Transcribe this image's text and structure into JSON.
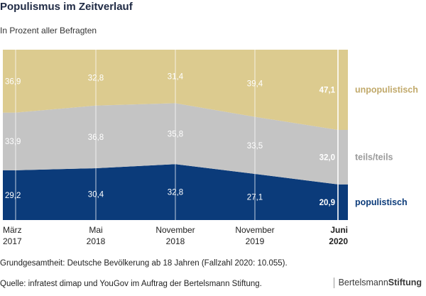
{
  "header": {
    "title": "Populismus im Zeitverlauf",
    "subtitle": "In Prozent aller Befragten"
  },
  "chart_data": {
    "type": "area",
    "stacked": true,
    "title": "Populismus im Zeitverlauf",
    "ylabel": "In Prozent aller Befragten",
    "ylim": [
      0,
      100
    ],
    "categories": [
      {
        "line1": "März",
        "line2": "2017",
        "bold": false
      },
      {
        "line1": "Mai",
        "line2": "2018",
        "bold": false
      },
      {
        "line1": "November",
        "line2": "2018",
        "bold": false
      },
      {
        "line1": "November",
        "line2": "2019",
        "bold": false
      },
      {
        "line1": "Juni",
        "line2": "2020",
        "bold": true
      }
    ],
    "series": [
      {
        "name": "populistisch",
        "color": "#0b3b7a",
        "labelColor": "#0b3b7a",
        "values": [
          29.2,
          30.4,
          32.8,
          27.1,
          20.9
        ],
        "labels": [
          "29,2",
          "30,4",
          "32,8",
          "27,1",
          "20,9"
        ]
      },
      {
        "name": "teils/teils",
        "color": "#c4c4c4",
        "labelColor": "#9a9a9a",
        "values": [
          33.9,
          36.8,
          35.8,
          33.5,
          32.0
        ],
        "labels": [
          "33,9",
          "36,8",
          "35,8",
          "33,5",
          "32,0"
        ]
      },
      {
        "name": "unpopulistisch",
        "color": "#dccb8f",
        "labelColor": "#c1a96a",
        "values": [
          36.9,
          32.8,
          31.4,
          39.4,
          47.1
        ],
        "labels": [
          "36,9",
          "32,8",
          "31,4",
          "39,4",
          "47,1"
        ]
      }
    ]
  },
  "footer": {
    "note": "Grundgesamtheit: Deutsche Bevölkerung ab 18 Jahren (Fallzahl 2020: 10.055).",
    "source": "Quelle: infratest dimap und YouGov im Auftrag der Bertelsmann Stiftung.",
    "brand_part1": "Bertelsmann",
    "brand_part2": "Stiftung"
  }
}
